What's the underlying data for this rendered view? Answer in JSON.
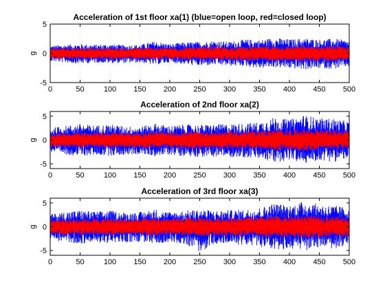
{
  "chart_data": [
    {
      "type": "line",
      "title": "Acceleration of 1st floor xa(1) (blue=open loop, red=closed loop)",
      "xlabel": "",
      "ylabel": "g",
      "xlim": [
        0,
        500
      ],
      "ylim": [
        -5,
        5
      ],
      "xticks": [
        0,
        50,
        100,
        150,
        200,
        250,
        300,
        350,
        400,
        450,
        500
      ],
      "yticks": [
        -5,
        0,
        5
      ],
      "grid": "x",
      "series": [
        {
          "color": "#0000ff",
          "x": [
            0,
            25,
            50,
            75,
            100,
            125,
            150,
            175,
            200,
            225,
            250,
            275,
            300,
            325,
            350,
            375,
            400,
            425,
            450,
            475,
            500
          ],
          "y_max": [
            1.3,
            1.5,
            1.6,
            1.5,
            1.6,
            1.4,
            1.5,
            2.1,
            1.6,
            1.9,
            2.0,
            2.2,
            2.0,
            2.4,
            2.3,
            2.7,
            2.4,
            2.6,
            2.4,
            2.5,
            2.2
          ],
          "y_min": [
            -1.3,
            -1.6,
            -1.8,
            -1.6,
            -1.7,
            -1.7,
            -1.6,
            -2.0,
            -1.6,
            -1.9,
            -2.2,
            -2.0,
            -2.2,
            -2.2,
            -2.6,
            -2.4,
            -2.6,
            -2.8,
            -2.6,
            -2.7,
            -2.3
          ]
        },
        {
          "color": "#ff0000",
          "x": [
            0,
            25,
            50,
            75,
            100,
            125,
            150,
            175,
            200,
            225,
            250,
            275,
            300,
            325,
            350,
            375,
            400,
            425,
            450,
            475,
            500
          ],
          "y_max": [
            0.9,
            1.0,
            1.0,
            0.9,
            1.0,
            0.9,
            1.0,
            1.1,
            1.0,
            1.1,
            1.1,
            1.2,
            1.1,
            1.2,
            1.2,
            1.3,
            1.2,
            1.3,
            1.2,
            1.3,
            1.1
          ],
          "y_min": [
            -0.9,
            -1.0,
            -1.0,
            -1.0,
            -1.0,
            -1.0,
            -1.0,
            -1.1,
            -1.0,
            -1.1,
            -1.2,
            -1.1,
            -1.2,
            -1.2,
            -1.3,
            -1.2,
            -1.3,
            -1.3,
            -1.3,
            -1.3,
            -1.1
          ]
        }
      ]
    },
    {
      "type": "line",
      "title": "Acceleration of 2nd floor xa(2)",
      "xlabel": "",
      "ylabel": "g",
      "xlim": [
        0,
        500
      ],
      "ylim": [
        -6,
        6
      ],
      "xticks": [
        0,
        50,
        100,
        150,
        200,
        250,
        300,
        350,
        400,
        450,
        500
      ],
      "yticks": [
        -5,
        0,
        5
      ],
      "grid": "x",
      "series": [
        {
          "color": "#0000ff",
          "x": [
            0,
            25,
            50,
            75,
            100,
            125,
            150,
            175,
            200,
            225,
            250,
            275,
            300,
            325,
            350,
            375,
            400,
            425,
            450,
            475,
            500
          ],
          "y_max": [
            2.5,
            3.0,
            3.4,
            3.1,
            3.3,
            2.9,
            2.8,
            3.5,
            3.0,
            3.3,
            3.2,
            3.3,
            3.4,
            3.5,
            3.8,
            4.8,
            4.3,
            5.3,
            4.6,
            4.5,
            3.9
          ],
          "y_min": [
            -2.6,
            -3.1,
            -3.4,
            -3.2,
            -3.3,
            -3.2,
            -3.0,
            -3.4,
            -3.1,
            -3.4,
            -3.6,
            -3.5,
            -3.6,
            -3.7,
            -4.0,
            -4.8,
            -4.2,
            -5.0,
            -4.3,
            -4.6,
            -3.8
          ]
        },
        {
          "color": "#ff0000",
          "x": [
            0,
            25,
            50,
            75,
            100,
            125,
            150,
            175,
            200,
            225,
            250,
            275,
            300,
            325,
            350,
            375,
            400,
            425,
            450,
            475,
            500
          ],
          "y_max": [
            1.4,
            1.6,
            1.7,
            1.6,
            1.7,
            1.6,
            1.6,
            1.8,
            1.6,
            1.8,
            1.8,
            1.8,
            1.9,
            1.9,
            2.0,
            2.2,
            2.1,
            2.3,
            2.1,
            2.1,
            1.9
          ],
          "y_min": [
            -1.4,
            -1.6,
            -1.7,
            -1.6,
            -1.7,
            -1.6,
            -1.6,
            -1.8,
            -1.6,
            -1.8,
            -1.9,
            -1.8,
            -1.9,
            -1.9,
            -2.0,
            -2.2,
            -2.1,
            -2.3,
            -2.1,
            -2.1,
            -1.9
          ]
        }
      ]
    },
    {
      "type": "line",
      "title": "Acceleration of 3rd floor xa(3)",
      "xlabel": "",
      "ylabel": "g",
      "xlim": [
        0,
        500
      ],
      "ylim": [
        -6,
        6
      ],
      "xticks": [
        0,
        50,
        100,
        150,
        200,
        250,
        300,
        350,
        400,
        450,
        500
      ],
      "yticks": [
        -5,
        0,
        5
      ],
      "grid": "x",
      "series": [
        {
          "color": "#0000ff",
          "x": [
            0,
            25,
            50,
            75,
            100,
            125,
            150,
            175,
            200,
            225,
            250,
            275,
            300,
            325,
            350,
            375,
            400,
            425,
            450,
            475,
            500
          ],
          "y_max": [
            2.6,
            3.2,
            3.5,
            3.2,
            3.4,
            3.0,
            3.1,
            3.7,
            3.1,
            3.4,
            3.7,
            3.4,
            3.5,
            3.6,
            4.0,
            5.0,
            4.5,
            5.4,
            4.7,
            4.5,
            4.0
          ],
          "y_min": [
            -2.7,
            -3.3,
            -3.6,
            -3.3,
            -3.5,
            -3.3,
            -3.2,
            -3.6,
            -3.2,
            -3.6,
            -5.4,
            -3.6,
            -3.7,
            -3.9,
            -4.2,
            -5.3,
            -4.5,
            -5.1,
            -4.4,
            -4.7,
            -3.9
          ]
        },
        {
          "color": "#ff0000",
          "x": [
            0,
            25,
            50,
            75,
            100,
            125,
            150,
            175,
            200,
            225,
            250,
            275,
            300,
            325,
            350,
            375,
            400,
            425,
            450,
            475,
            500
          ],
          "y_max": [
            1.5,
            1.7,
            1.8,
            1.7,
            1.8,
            1.7,
            1.7,
            1.9,
            1.7,
            1.9,
            2.0,
            1.9,
            2.0,
            2.0,
            2.1,
            2.3,
            2.2,
            2.4,
            2.2,
            2.2,
            2.0
          ],
          "y_min": [
            -1.5,
            -1.7,
            -1.8,
            -1.7,
            -1.8,
            -1.7,
            -1.7,
            -1.9,
            -1.7,
            -1.9,
            -2.0,
            -1.9,
            -2.0,
            -2.0,
            -2.1,
            -2.3,
            -2.2,
            -2.4,
            -2.2,
            -2.2,
            -2.0
          ]
        }
      ]
    }
  ]
}
